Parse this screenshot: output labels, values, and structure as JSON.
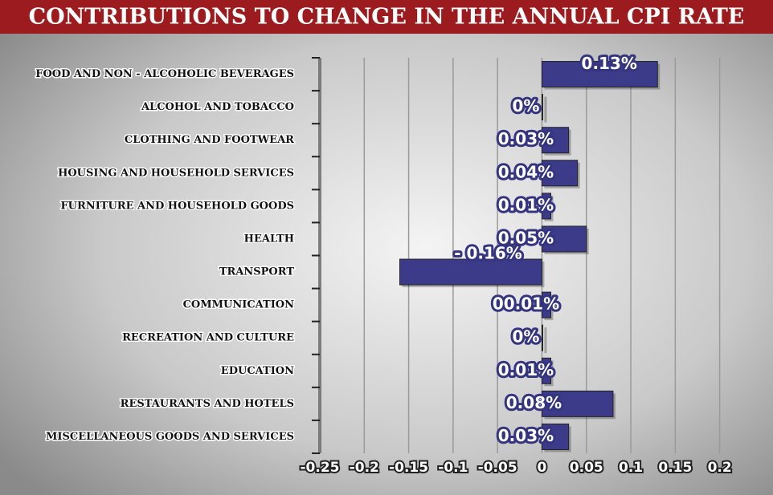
{
  "chart_data": {
    "type": "bar",
    "orientation": "horizontal",
    "title": "CONTRIBUTIONS TO CHANGE IN THE ANNUAL CPI RATE",
    "categories": [
      "FOOD AND NON - ALCOHOLIC BEVERAGES",
      "ALCOHOL AND TOBACCO",
      "CLOTHING AND FOOTWEAR",
      "HOUSING AND HOUSEHOLD SERVICES",
      "FURNITURE AND HOUSEHOLD GOODS",
      "HEALTH",
      "TRANSPORT",
      "COMMUNICATION",
      "RECREATION AND CULTURE",
      "EDUCATION",
      "RESTAURANTS AND HOTELS",
      "MISCELLANEOUS GOODS AND SERVICES"
    ],
    "values": [
      0.13,
      0,
      0.03,
      0.04,
      0.01,
      0.05,
      -0.16,
      0.01,
      0,
      0.01,
      0.08,
      0.03
    ],
    "value_labels": [
      "0.13%",
      "0%",
      "0.03%",
      "0.04%",
      "0.01%",
      "0.05%",
      "- 0.16%",
      "00.01%",
      "0%",
      "0.01%",
      "0.08%",
      "0.03%"
    ],
    "color": "#3b3b8a",
    "xlim": [
      -0.25,
      0.26
    ],
    "xticks": [
      -0.25,
      -0.2,
      -0.15,
      -0.1,
      -0.05,
      0,
      0.05,
      0.1,
      0.15,
      0.2
    ],
    "grid": true
  }
}
